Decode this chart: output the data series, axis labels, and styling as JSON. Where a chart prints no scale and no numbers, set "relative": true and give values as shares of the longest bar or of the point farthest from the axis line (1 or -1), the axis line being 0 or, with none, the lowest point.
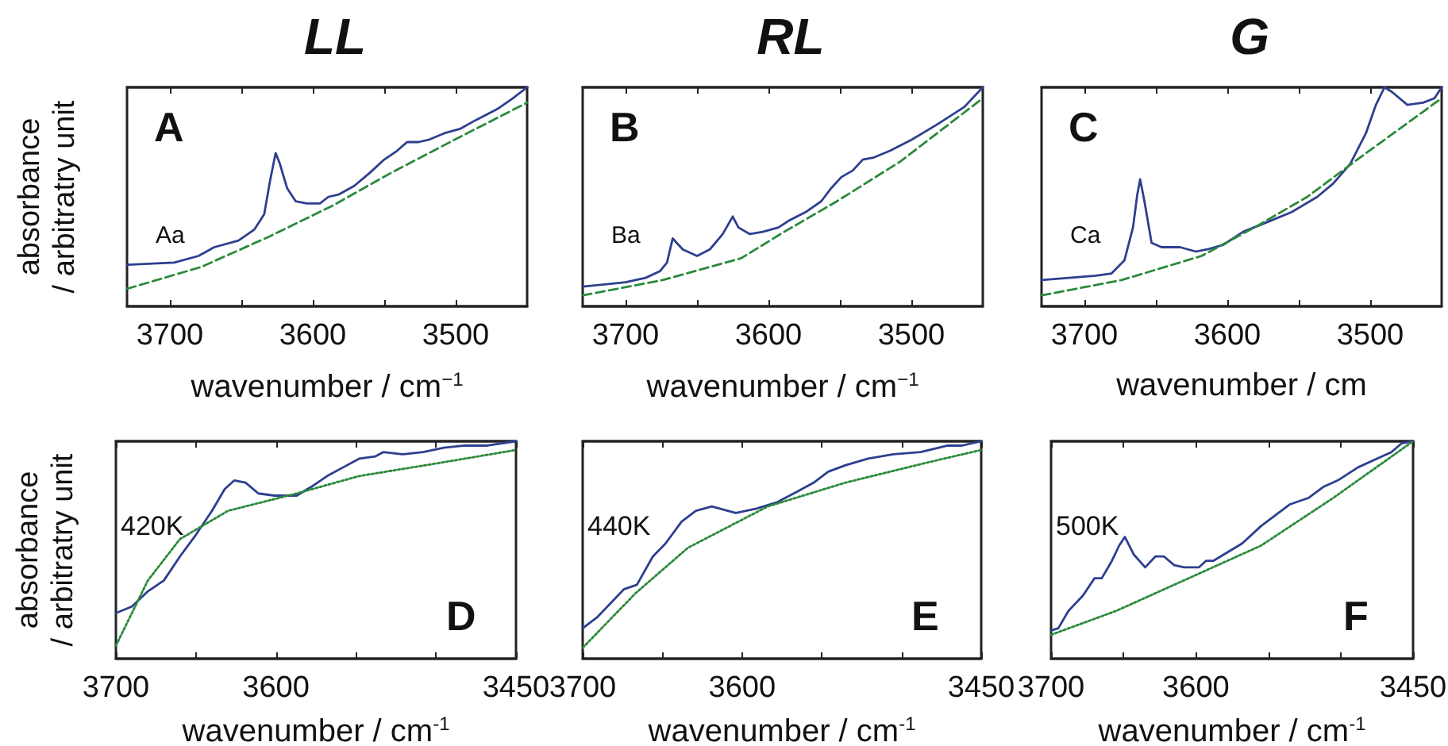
{
  "chart_data": [
    {
      "type": "line",
      "title": "LL",
      "xlabel": "wavenumber / cm$^{−1}$",
      "ylabel": "absorbance / arbitratry unit",
      "annotations": [
        "A",
        "Aa"
      ],
      "relative": true,
      "tick_labels": "x",
      "grid": false,
      "marker": "none",
      "xlim": [
        3730,
        3450
      ],
      "xticks": [
        3700,
        {
          "value": 3650,
          "label": null
        },
        3600,
        {
          "value": 3550,
          "label": null
        },
        3500
      ],
      "series": [
        {
          "color": "#2e3f8f",
          "line_style": "solid",
          "x": [
            3730,
            3697,
            3680,
            3669,
            3652,
            3641,
            3634,
            3630,
            3626,
            3623,
            3618,
            3612,
            3604,
            3595,
            3589,
            3582,
            3571,
            3560,
            3550,
            3541,
            3534,
            3526,
            3519,
            3508,
            3497,
            3486,
            3471,
            3460,
            3450
          ],
          "values": [
            0.19,
            0.2,
            0.23,
            0.27,
            0.3,
            0.35,
            0.42,
            0.57,
            0.7,
            0.65,
            0.54,
            0.48,
            0.47,
            0.47,
            0.5,
            0.51,
            0.55,
            0.61,
            0.67,
            0.71,
            0.75,
            0.75,
            0.76,
            0.79,
            0.81,
            0.85,
            0.9,
            0.95,
            1
          ]
        },
        {
          "color": "#2a8a3a",
          "line_style": "dashed",
          "x": [
            3730,
            3678,
            3630,
            3586,
            3545,
            3501,
            3450
          ],
          "values": [
            0.08,
            0.18,
            0.32,
            0.46,
            0.61,
            0.76,
            0.93
          ]
        }
      ]
    },
    {
      "type": "line",
      "title": "RL",
      "xlabel": "wavenumber / cm$^{−1}$",
      "annotations": [
        "B",
        "Ba"
      ],
      "relative": true,
      "tick_labels": "x",
      "grid": false,
      "marker": "none",
      "xlim": [
        3730,
        3450
      ],
      "xticks": [
        3700,
        {
          "value": 3650,
          "label": null
        },
        3600,
        {
          "value": 3550,
          "label": null
        },
        3500
      ],
      "series": [
        {
          "color": "#2e3f8f",
          "line_style": "solid",
          "x": [
            3730,
            3700,
            3686,
            3676,
            3671,
            3667,
            3660,
            3650,
            3641,
            3632,
            3625,
            3621,
            3613,
            3604,
            3593,
            3586,
            3574,
            3563,
            3556,
            3549,
            3541,
            3534,
            3526,
            3515,
            3500,
            3482,
            3463,
            3450
          ],
          "values": [
            0.09,
            0.11,
            0.13,
            0.16,
            0.2,
            0.31,
            0.26,
            0.23,
            0.26,
            0.33,
            0.41,
            0.36,
            0.33,
            0.34,
            0.36,
            0.39,
            0.43,
            0.48,
            0.54,
            0.59,
            0.62,
            0.67,
            0.68,
            0.71,
            0.76,
            0.83,
            0.91,
            1
          ]
        },
        {
          "color": "#2a8a3a",
          "line_style": "dashed",
          "x": [
            3730,
            3674,
            3619,
            3589,
            3552,
            3508,
            3450
          ],
          "values": [
            0.05,
            0.12,
            0.22,
            0.34,
            0.48,
            0.66,
            0.95
          ]
        }
      ]
    },
    {
      "type": "line",
      "title": "G",
      "xlabel": "wavenumber / cm",
      "annotations": [
        "C",
        "Ca"
      ],
      "relative": true,
      "tick_labels": "x",
      "grid": false,
      "marker": "none",
      "xlim": [
        3730,
        3450
      ],
      "xticks": [
        3700,
        {
          "value": 3650,
          "label": null
        },
        3600,
        {
          "value": 3550,
          "label": null
        },
        3500
      ],
      "series": [
        {
          "color": "#2e3f8f",
          "line_style": "solid",
          "x": [
            3730,
            3711,
            3692,
            3681,
            3672,
            3666,
            3663,
            3661,
            3658,
            3653,
            3646,
            3633,
            3622,
            3614,
            3603,
            3589,
            3570,
            3555,
            3537,
            3526,
            3514,
            3503,
            3496,
            3490,
            3485,
            3474,
            3463,
            3455,
            3450
          ],
          "values": [
            0.12,
            0.13,
            0.14,
            0.15,
            0.21,
            0.36,
            0.51,
            0.58,
            0.48,
            0.29,
            0.27,
            0.27,
            0.25,
            0.26,
            0.28,
            0.34,
            0.39,
            0.43,
            0.5,
            0.56,
            0.65,
            0.79,
            0.92,
            1,
            0.98,
            0.92,
            0.93,
            0.95,
            1
          ]
        },
        {
          "color": "#2a8a3a",
          "line_style": "dashed",
          "x": [
            3730,
            3674,
            3618,
            3581,
            3544,
            3507,
            3450
          ],
          "values": [
            0.05,
            0.12,
            0.23,
            0.36,
            0.5,
            0.68,
            0.95
          ]
        }
      ]
    },
    {
      "type": "line",
      "xlabel": "wavenumber / cm$^{-1}$",
      "ylabel": "absorbance / arbitratry unit",
      "annotations": [
        "D",
        "420K"
      ],
      "relative": true,
      "tick_labels": "x",
      "grid": false,
      "marker": "none",
      "xlim": [
        3700,
        3450
      ],
      "xticks": [
        3700,
        {
          "value": 3650,
          "label": null
        },
        3600,
        {
          "value": 3550,
          "label": null
        },
        {
          "value": 3500,
          "label": null
        },
        3450
      ],
      "series": [
        {
          "color": "#2e3f8f",
          "line_style": "solid",
          "x": [
            3700,
            3690,
            3680,
            3670,
            3660,
            3650,
            3640,
            3632,
            3626,
            3619,
            3611,
            3601,
            3587,
            3578,
            3568,
            3558,
            3548,
            3538,
            3533,
            3521,
            3508,
            3495,
            3482,
            3468,
            3450
          ],
          "values": [
            0.21,
            0.24,
            0.31,
            0.36,
            0.47,
            0.57,
            0.68,
            0.78,
            0.82,
            0.81,
            0.76,
            0.75,
            0.75,
            0.79,
            0.84,
            0.88,
            0.92,
            0.93,
            0.95,
            0.94,
            0.95,
            0.97,
            0.98,
            0.98,
            1
          ]
        },
        {
          "color": "#2a8a3a",
          "line_style": "dotted",
          "x": [
            3700,
            3680,
            3660,
            3630,
            3587,
            3548,
            3498,
            3450
          ],
          "values": [
            0.06,
            0.36,
            0.55,
            0.68,
            0.76,
            0.84,
            0.9,
            0.96
          ]
        }
      ]
    },
    {
      "type": "line",
      "xlabel": "wavenumber / cm$^{-1}$",
      "annotations": [
        "E",
        "440K"
      ],
      "relative": true,
      "tick_labels": "x",
      "grid": false,
      "marker": "none",
      "xlim": [
        3700,
        3450
      ],
      "xticks": [
        3700,
        {
          "value": 3650,
          "label": null
        },
        3600,
        {
          "value": 3550,
          "label": null
        },
        {
          "value": 3500,
          "label": null
        },
        3450
      ],
      "series": [
        {
          "color": "#2e3f8f",
          "line_style": "solid",
          "x": [
            3700,
            3691,
            3674,
            3666,
            3656,
            3648,
            3638,
            3629,
            3619,
            3604,
            3591,
            3578,
            3565,
            3555,
            3546,
            3535,
            3521,
            3505,
            3488,
            3471,
            3462,
            3450
          ],
          "values": [
            0.14,
            0.19,
            0.32,
            0.34,
            0.47,
            0.53,
            0.63,
            0.68,
            0.7,
            0.67,
            0.69,
            0.72,
            0.77,
            0.81,
            0.86,
            0.89,
            0.92,
            0.94,
            0.95,
            0.98,
            0.98,
            1
          ]
        },
        {
          "color": "#2a8a3a",
          "line_style": "dotted",
          "x": [
            3700,
            3667,
            3634,
            3584,
            3535,
            3485,
            3450
          ],
          "values": [
            0.05,
            0.3,
            0.51,
            0.7,
            0.81,
            0.9,
            0.96
          ]
        }
      ]
    },
    {
      "type": "line",
      "xlabel": "wavenumber / cm$^{-1}$",
      "annotations": [
        "F",
        "500K"
      ],
      "relative": true,
      "tick_labels": "x",
      "grid": false,
      "marker": "none",
      "xlim": [
        3700,
        3450
      ],
      "xticks": [
        3700,
        {
          "value": 3650,
          "label": null
        },
        3600,
        {
          "value": 3550,
          "label": null
        },
        {
          "value": 3500,
          "label": null
        },
        3450
      ],
      "series": [
        {
          "color": "#2e3f8f",
          "line_style": "solid",
          "x": [
            3700,
            3695,
            3688,
            3678,
            3670,
            3665,
            3658,
            3653,
            3649,
            3643,
            3635,
            3628,
            3622,
            3615,
            3608,
            3598,
            3593,
            3588,
            3578,
            3568,
            3555,
            3545,
            3535,
            3522,
            3512,
            3502,
            3488,
            3475,
            3465,
            3458,
            3450
          ],
          "values": [
            0.13,
            0.14,
            0.22,
            0.29,
            0.37,
            0.37,
            0.45,
            0.52,
            0.56,
            0.48,
            0.42,
            0.47,
            0.47,
            0.43,
            0.42,
            0.42,
            0.45,
            0.45,
            0.49,
            0.53,
            0.61,
            0.66,
            0.71,
            0.74,
            0.79,
            0.82,
            0.88,
            0.92,
            0.95,
            0.99,
            1
          ]
        },
        {
          "color": "#2a8a3a",
          "line_style": "dotted",
          "x": [
            3700,
            3655,
            3605,
            3555,
            3505,
            3450
          ],
          "values": [
            0.11,
            0.22,
            0.37,
            0.52,
            0.74,
            1
          ]
        }
      ]
    }
  ]
}
